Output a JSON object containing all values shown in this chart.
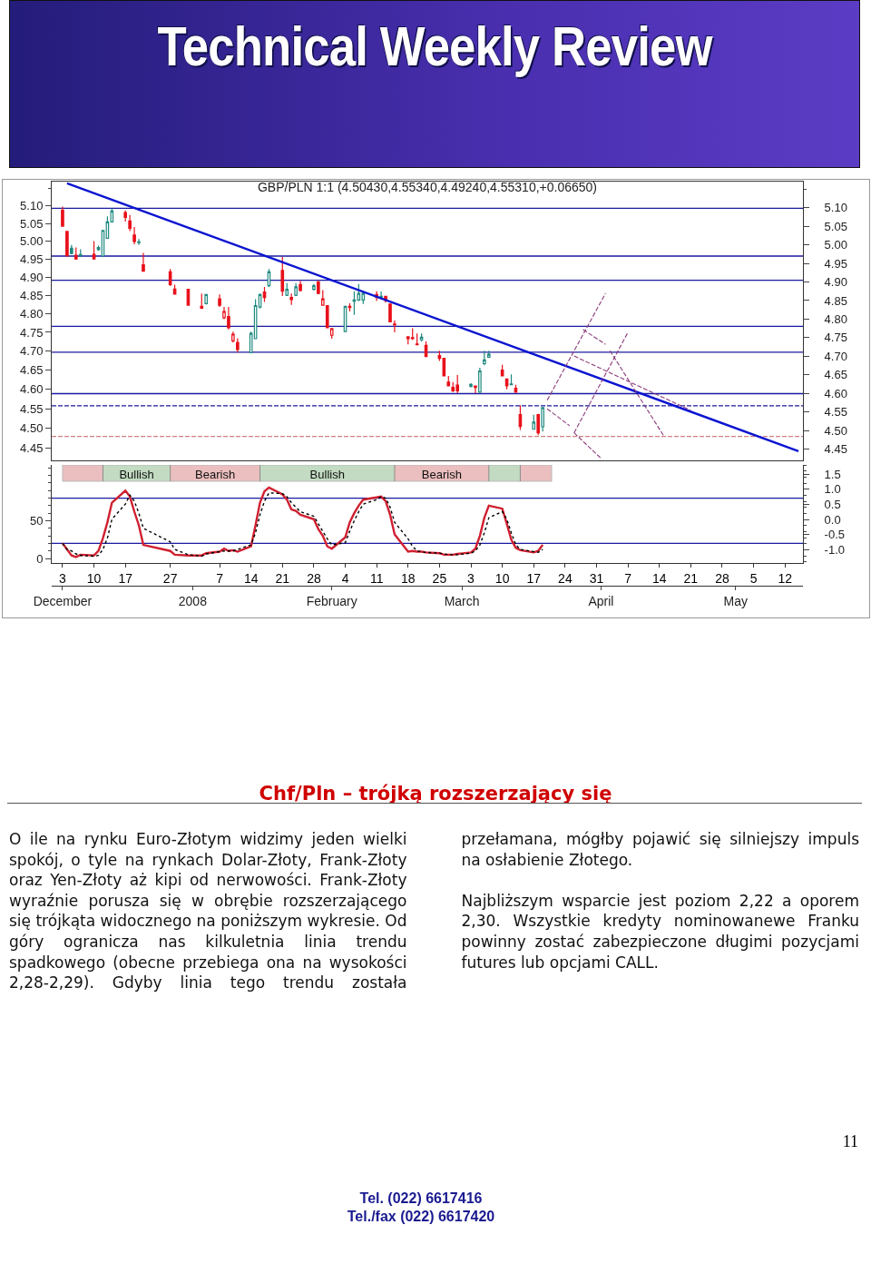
{
  "chart_data": [
    {
      "type": "other",
      "title": "Technical Weekly Review"
    },
    {
      "type": "candlestick",
      "title": "GBP/PLN 1:1 (4.50430,4.55340,4.49240,4.55310,+0.06650)",
      "x": [
        "2007-12-03",
        "2007-12-04",
        "2007-12-05",
        "2007-12-06",
        "2007-12-07",
        "2007-12-10",
        "2007-12-11",
        "2007-12-12",
        "2007-12-13",
        "2007-12-14",
        "2007-12-17",
        "2007-12-18",
        "2007-12-19",
        "2007-12-20",
        "2007-12-21",
        "2007-12-27",
        "2007-12-28",
        "2007-12-31",
        "2008-01-03",
        "2008-01-04",
        "2008-01-07",
        "2008-01-08",
        "2008-01-09",
        "2008-01-10",
        "2008-01-11",
        "2008-01-14",
        "2008-01-15",
        "2008-01-16",
        "2008-01-17",
        "2008-01-18",
        "2008-01-21",
        "2008-01-22",
        "2008-01-23",
        "2008-01-24",
        "2008-01-25",
        "2008-01-28",
        "2008-01-29",
        "2008-01-30",
        "2008-01-31",
        "2008-02-01",
        "2008-02-04",
        "2008-02-05",
        "2008-02-06",
        "2008-02-07",
        "2008-02-08",
        "2008-02-11",
        "2008-02-12",
        "2008-02-13",
        "2008-02-14",
        "2008-02-15",
        "2008-02-18",
        "2008-02-19",
        "2008-02-20",
        "2008-02-21",
        "2008-02-22",
        "2008-02-25",
        "2008-02-26",
        "2008-02-27",
        "2008-02-28",
        "2008-02-29",
        "2008-03-03",
        "2008-03-04",
        "2008-03-05",
        "2008-03-06",
        "2008-03-07",
        "2008-03-10",
        "2008-03-11",
        "2008-03-12",
        "2008-03-13",
        "2008-03-14",
        "2008-03-17",
        "2008-03-18",
        "2008-03-19"
      ],
      "ohlc": [
        [
          5.087,
          5.098,
          5.042,
          5.042
        ],
        [
          5.027,
          5.027,
          4.958,
          4.958
        ],
        [
          4.98,
          4.989,
          4.963,
          4.965
        ],
        [
          4.96,
          4.982,
          4.948,
          4.95
        ],
        [
          4.962,
          4.977,
          4.956,
          4.958
        ],
        [
          4.963,
          5.0,
          4.95,
          4.95
        ],
        [
          4.982,
          4.987,
          4.973,
          4.976
        ],
        [
          4.958,
          5.03,
          4.956,
          5.03
        ],
        [
          5.008,
          5.07,
          5.008,
          5.054
        ],
        [
          5.054,
          5.093,
          5.054,
          5.085
        ],
        [
          5.081,
          5.087,
          5.055,
          5.067
        ],
        [
          5.057,
          5.074,
          5.028,
          5.036
        ],
        [
          5.017,
          5.04,
          4.991,
          4.999
        ],
        [
          4.996,
          5.006,
          4.989,
          4.998
        ],
        [
          4.934,
          4.967,
          4.916,
          4.916
        ],
        [
          4.914,
          4.922,
          4.875,
          4.879
        ],
        [
          4.867,
          4.879,
          4.852,
          4.853
        ],
        [
          4.866,
          4.866,
          4.823,
          4.823
        ],
        [
          4.82,
          4.855,
          4.813,
          4.815
        ],
        [
          4.827,
          4.853,
          4.825,
          4.852
        ],
        [
          4.84,
          4.852,
          4.818,
          4.823
        ],
        [
          4.789,
          4.818,
          4.785,
          4.806
        ],
        [
          4.792,
          4.818,
          4.758,
          4.762
        ],
        [
          4.727,
          4.752,
          4.723,
          4.745
        ],
        [
          4.723,
          4.734,
          4.696,
          4.704
        ],
        [
          4.696,
          4.752,
          4.696,
          4.747
        ],
        [
          4.733,
          4.839,
          4.733,
          4.822
        ],
        [
          4.818,
          4.855,
          4.814,
          4.852
        ],
        [
          4.859,
          4.873,
          4.832,
          4.844
        ],
        [
          4.876,
          4.922,
          4.873,
          4.914
        ],
        [
          4.918,
          4.956,
          4.848,
          4.861
        ],
        [
          4.85,
          4.883,
          4.848,
          4.866
        ],
        [
          4.844,
          4.855,
          4.824,
          4.838
        ],
        [
          4.85,
          4.883,
          4.848,
          4.873
        ],
        [
          4.879,
          4.889,
          4.86,
          4.863
        ],
        [
          4.866,
          4.881,
          4.863,
          4.876
        ],
        [
          4.887,
          4.889,
          4.853,
          4.855
        ],
        [
          4.823,
          4.864,
          4.823,
          4.84
        ],
        [
          4.822,
          4.822,
          4.762,
          4.762
        ],
        [
          4.742,
          4.76,
          4.733,
          4.76
        ],
        [
          4.752,
          4.82,
          4.752,
          4.82
        ],
        [
          4.82,
          4.828,
          4.806,
          4.817
        ],
        [
          4.834,
          4.861,
          4.797,
          4.837
        ],
        [
          4.837,
          4.881,
          4.834,
          4.855
        ],
        [
          4.837,
          4.863,
          4.826,
          4.855
        ],
        [
          4.852,
          4.861,
          4.834,
          4.844
        ],
        [
          4.845,
          4.86,
          4.838,
          4.847
        ],
        [
          4.847,
          4.847,
          4.83,
          4.836
        ],
        [
          4.826,
          4.826,
          4.778,
          4.778
        ],
        [
          4.772,
          4.782,
          4.75,
          4.77
        ],
        [
          4.738,
          4.738,
          4.718,
          4.733
        ],
        [
          4.736,
          4.761,
          4.73,
          4.733
        ],
        [
          4.719,
          4.747,
          4.717,
          4.717
        ],
        [
          4.73,
          4.747,
          4.726,
          4.737
        ],
        [
          4.715,
          4.726,
          4.686,
          4.686
        ],
        [
          4.688,
          4.701,
          4.674,
          4.681
        ],
        [
          4.681,
          4.681,
          4.635,
          4.635
        ],
        [
          4.619,
          4.635,
          4.608,
          4.609
        ],
        [
          4.605,
          4.619,
          4.593,
          4.596
        ],
        [
          4.611,
          4.637,
          4.59,
          4.596
        ],
        [
          4.608,
          4.616,
          4.605,
          4.613
        ],
        [
          4.609,
          4.609,
          4.59,
          4.605
        ],
        [
          4.593,
          4.656,
          4.593,
          4.648
        ],
        [
          4.667,
          4.701,
          4.663,
          4.677
        ],
        [
          4.684,
          4.701,
          4.684,
          4.692
        ],
        [
          4.65,
          4.664,
          4.635,
          4.635
        ],
        [
          4.627,
          4.627,
          4.6,
          4.609
        ],
        [
          4.612,
          4.639,
          4.612,
          4.614
        ],
        [
          4.603,
          4.612,
          4.593,
          4.593
        ],
        [
          4.535,
          4.559,
          4.496,
          4.505
        ],
        [
          4.498,
          4.535,
          4.498,
          4.516
        ],
        [
          4.535,
          4.537,
          4.483,
          4.489
        ],
        [
          4.5043,
          4.5534,
          4.4924,
          4.5531
        ]
      ],
      "colors": [
        "#e8101a",
        "#e8101a",
        "#1f8a80",
        "#e8101a",
        "#1f8a80",
        "#e8101a",
        "#1f8a80",
        "#1f8a80",
        "#1f8a80",
        "#1f8a80",
        "#e8101a",
        "#e8101a",
        "#e8101a",
        "#1f8a80",
        "#e8101a",
        "#e8101a",
        "#e8101a",
        "#e8101a",
        "#e8101a",
        "#1f8a80",
        "#e8101a",
        "#e8101a",
        "#e8101a",
        "#e8101a",
        "#e8101a",
        "#1f8a80",
        "#1f8a80",
        "#1f8a80",
        "#e8101a",
        "#1f8a80",
        "#e8101a",
        "#1f8a80",
        "#e8101a",
        "#1f8a80",
        "#e8101a",
        "#1f8a80",
        "#e8101a",
        "#e8101a",
        "#e8101a",
        "#e8101a",
        "#1f8a80",
        "#e8101a",
        "#1f8a80",
        "#1f8a80",
        "#1f8a80",
        "#e8101a",
        "#1f8a80",
        "#e8101a",
        "#e8101a",
        "#e8101a",
        "#e8101a",
        "#e8101a",
        "#e8101a",
        "#1f8a80",
        "#e8101a",
        "#e8101a",
        "#e8101a",
        "#e8101a",
        "#e8101a",
        "#e8101a",
        "#1f8a80",
        "#e8101a",
        "#1f8a80",
        "#1f8a80",
        "#1f8a80",
        "#e8101a",
        "#e8101a",
        "#1f8a80",
        "#e8101a",
        "#e8101a",
        "#1f8a80",
        "#e8101a",
        "#1f8a80"
      ],
      "series": [
        {
          "type": "line",
          "color": "#0a14d0",
          "x": [
            "2007-12-04",
            "2008-05-15"
          ],
          "values": [
            5.165,
            4.443
          ]
        },
        {
          "type": "line",
          "color": "#8b3a7a",
          "line_style": "dashed",
          "x": [
            "2008-03-20",
            "2008-04-02"
          ],
          "values": [
            4.572,
            4.855
          ]
        },
        {
          "type": "line",
          "color": "#8b3a7a",
          "line_style": "dashed",
          "x": [
            "2008-03-26",
            "2008-04-07"
          ],
          "values": [
            4.489,
            4.75
          ]
        },
        {
          "type": "line",
          "color": "#8b3a7a",
          "line_style": "dashed",
          "x": [
            "2008-03-26",
            "2008-04-21"
          ],
          "values": [
            4.687,
            4.546
          ]
        },
        {
          "type": "line",
          "color": "#8b3a7a",
          "line_style": "dashed",
          "x": [
            "2008-04-03",
            "2008-04-15"
          ],
          "values": [
            4.701,
            4.481
          ]
        },
        {
          "type": "line",
          "color": "#8b3a7a",
          "line_style": "dashed",
          "x": [
            "2008-03-20",
            "2008-03-25"
          ],
          "values": [
            4.55,
            4.507
          ]
        },
        {
          "type": "line",
          "color": "#8b3a7a",
          "line_style": "dashed",
          "x": [
            "2008-03-28",
            "2008-04-02"
          ],
          "values": [
            4.757,
            4.718
          ]
        },
        {
          "type": "line",
          "color": "#8b3a7a",
          "line_style": "dashed",
          "x": [
            "2008-03-26",
            "2008-04-01"
          ],
          "values": [
            4.489,
            4.425
          ]
        }
      ],
      "ref_lines": [
        {
          "axis": "y",
          "value": 5.093,
          "color": "#1a1aa0"
        },
        {
          "axis": "y",
          "value": 4.958,
          "color": "#1a1aa0"
        },
        {
          "axis": "y",
          "value": 4.891,
          "color": "#1a1aa0"
        },
        {
          "axis": "y",
          "value": 4.766,
          "color": "#1a1aa0"
        },
        {
          "axis": "y",
          "value": 4.697,
          "color": "#1a1aa0"
        },
        {
          "axis": "y",
          "value": 4.589,
          "color": "#1a1aa0"
        },
        {
          "axis": "y",
          "value": 4.558,
          "color": "#1a1aa0",
          "line_style": "dashed"
        },
        {
          "axis": "y",
          "value": 4.48,
          "color": "#d08080",
          "line_style": "dashed"
        }
      ],
      "log": "y",
      "xlim": [
        "2007-11-30T14:00",
        "2008-05-16"
      ],
      "ylim": [
        4.42,
        5.17
      ],
      "yticks": [
        4.45,
        {
          "value": 4.5,
          "label": "4.50"
        },
        4.55,
        {
          "value": 4.6,
          "label": "4.60"
        },
        4.65,
        {
          "value": 4.7,
          "label": "4.70"
        },
        4.75,
        {
          "value": 4.8,
          "label": "4.80"
        },
        4.85,
        {
          "value": 4.9,
          "label": "4.90"
        },
        4.95,
        {
          "value": 5.0,
          "label": "5.00"
        },
        5.05,
        {
          "value": 5.1,
          "label": "5.10"
        }
      ],
      "y2lim": [
        4.42,
        5.17
      ],
      "y2ticks": [
        4.45,
        {
          "value": 4.5,
          "label": "4.50"
        },
        4.55,
        {
          "value": 4.6,
          "label": "4.60"
        },
        4.65,
        {
          "value": 4.7,
          "label": "4.70"
        },
        4.75,
        {
          "value": 4.8,
          "label": "4.80"
        },
        4.85,
        {
          "value": 4.9,
          "label": "4.90"
        },
        4.95,
        {
          "value": 5.0,
          "label": "5.00"
        },
        5.05,
        {
          "value": 5.1,
          "label": "5.10"
        }
      ],
      "tick_labels": "y",
      "grid": false
    },
    {
      "type": "line",
      "x": [
        "2007-12-03",
        "2007-12-04",
        "2007-12-05",
        "2007-12-06",
        "2007-12-07",
        "2007-12-10",
        "2007-12-11",
        "2007-12-12",
        "2007-12-13",
        "2007-12-14",
        "2007-12-17",
        "2007-12-18",
        "2007-12-19",
        "2007-12-20",
        "2007-12-21",
        "2007-12-27",
        "2007-12-28",
        "2007-12-31",
        "2008-01-03",
        "2008-01-04",
        "2008-01-07",
        "2008-01-08",
        "2008-01-09",
        "2008-01-10",
        "2008-01-11",
        "2008-01-14",
        "2008-01-15",
        "2008-01-16",
        "2008-01-17",
        "2008-01-18",
        "2008-01-21",
        "2008-01-22",
        "2008-01-23",
        "2008-01-24",
        "2008-01-25",
        "2008-01-28",
        "2008-01-29",
        "2008-01-30",
        "2008-01-31",
        "2008-02-01",
        "2008-02-04",
        "2008-02-05",
        "2008-02-06",
        "2008-02-07",
        "2008-02-08",
        "2008-02-11",
        "2008-02-12",
        "2008-02-13",
        "2008-02-14",
        "2008-02-15",
        "2008-02-18",
        "2008-02-19",
        "2008-02-20",
        "2008-02-21",
        "2008-02-22",
        "2008-02-25",
        "2008-02-26",
        "2008-02-27",
        "2008-02-28",
        "2008-02-29",
        "2008-03-03",
        "2008-03-04",
        "2008-03-05",
        "2008-03-06",
        "2008-03-07",
        "2008-03-10",
        "2008-03-11",
        "2008-03-12",
        "2008-03-13",
        "2008-03-14",
        "2008-03-17",
        "2008-03-18",
        "2008-03-19"
      ],
      "series": [
        {
          "color": "#d02030",
          "values": [
            20,
            12,
            4,
            2,
            5,
            4,
            10,
            27,
            48,
            74,
            90,
            82,
            62,
            44,
            18,
            10,
            5,
            4,
            4,
            7,
            9,
            13,
            10,
            11,
            9,
            16,
            44,
            74,
            89,
            94,
            85,
            78,
            65,
            63,
            58,
            52,
            39,
            30,
            16,
            13,
            28,
            48,
            60,
            70,
            78,
            81,
            82,
            76,
            58,
            32,
            9,
            10,
            9,
            9,
            8,
            7,
            5,
            5,
            5,
            6,
            8,
            13,
            30,
            54,
            70,
            66,
            46,
            25,
            14,
            11,
            8,
            10,
            18
          ]
        },
        {
          "color": "#000000",
          "line_style": "dotted",
          "values": [
            20,
            12,
            10,
            6,
            4,
            3,
            4,
            12,
            27,
            52,
            72,
            84,
            76,
            60,
            40,
            22,
            12,
            5,
            3,
            6,
            9,
            10,
            10,
            10,
            12,
            18,
            34,
            58,
            76,
            87,
            86,
            82,
            74,
            68,
            62,
            56,
            46,
            36,
            26,
            18,
            21,
            36,
            50,
            62,
            72,
            78,
            82,
            80,
            68,
            48,
            26,
            16,
            10,
            9,
            8,
            7,
            6,
            5,
            5,
            5,
            7,
            10,
            18,
            34,
            54,
            62,
            52,
            34,
            18,
            12,
            9,
            8,
            12
          ]
        }
      ],
      "ref_lines": [
        {
          "axis": "y",
          "value": 80,
          "color": "#1a1aa0"
        },
        {
          "axis": "y",
          "value": 20,
          "color": "#1a1aa0"
        }
      ],
      "bands": [
        {
          "axis": "x",
          "from": "2007-12-03",
          "to": "2007-12-12",
          "color": "#c03030"
        },
        {
          "axis": "x",
          "from": "2007-12-12",
          "to": "2007-12-27",
          "label": "Bullish",
          "color": "#3a8a3a"
        },
        {
          "axis": "x",
          "from": "2007-12-27",
          "to": "2008-01-16",
          "label": "Bearish",
          "color": "#c03030"
        },
        {
          "axis": "x",
          "from": "2008-01-16",
          "to": "2008-02-15",
          "label": "Bullish",
          "color": "#3a8a3a"
        },
        {
          "axis": "x",
          "from": "2008-02-15",
          "to": "2008-03-07",
          "label": "Bearish",
          "color": "#c03030"
        },
        {
          "axis": "x",
          "from": "2008-03-07",
          "to": "2008-03-14",
          "color": "#3a8a3a"
        },
        {
          "axis": "x",
          "from": "2008-03-14",
          "to": "2008-03-21",
          "color": "#c03030"
        }
      ],
      "xlim": [
        "2007-11-30T14:00",
        "2008-05-16"
      ],
      "xticks": [
        {
          "value": "2007-12-03",
          "label": "3"
        },
        {
          "value": "2007-12-10",
          "label": "10"
        },
        {
          "value": "2007-12-17",
          "label": "17"
        },
        {
          "value": "2007-12-27",
          "label": "27"
        },
        {
          "value": "2008-01-07",
          "label": "7"
        },
        {
          "value": "2008-01-14",
          "label": "14"
        },
        {
          "value": "2008-01-21",
          "label": "21"
        },
        {
          "value": "2008-01-28",
          "label": "28"
        },
        {
          "value": "2008-02-04",
          "label": "4"
        },
        {
          "value": "2008-02-11",
          "label": "11"
        },
        {
          "value": "2008-02-18",
          "label": "18"
        },
        {
          "value": "2008-02-25",
          "label": "25"
        },
        {
          "value": "2008-03-03",
          "label": "3"
        },
        {
          "value": "2008-03-10",
          "label": "10"
        },
        {
          "value": "2008-03-17",
          "label": "17"
        },
        {
          "value": "2008-03-24",
          "label": "24"
        },
        {
          "value": "2008-03-31",
          "label": "31"
        },
        {
          "value": "2008-04-07",
          "label": "7"
        },
        {
          "value": "2008-04-14",
          "label": "14"
        },
        {
          "value": "2008-04-21",
          "label": "21"
        },
        {
          "value": "2008-04-28",
          "label": "28"
        },
        {
          "value": "2008-05-05",
          "label": "5"
        },
        {
          "value": "2008-05-12",
          "label": "12"
        }
      ],
      "x2lim": [
        "2007-11-30T14:00",
        "2008-05-16"
      ],
      "x2ticks": [
        {
          "value": "2007-12-03",
          "label": "December"
        },
        {
          "value": "2008-01-01",
          "label": "2008"
        },
        {
          "value": "2008-02-01",
          "label": "February"
        },
        {
          "value": "2008-03-01",
          "label": "March"
        },
        {
          "value": "2008-04-01",
          "label": "April"
        },
        {
          "value": "2008-05-01",
          "label": "May"
        }
      ],
      "ylim": [
        -6,
        124
      ],
      "yticks": [
        0,
        50
      ],
      "y2lim": [
        -1.44,
        1.8
      ],
      "y2ticks": [
        {
          "value": 1.5,
          "label": "1.5"
        },
        {
          "value": 1,
          "label": "1.0"
        },
        {
          "value": 0.5,
          "label": "0.5"
        },
        {
          "value": 0,
          "label": "0.0"
        },
        {
          "value": -0.5,
          "label": "-0.5"
        },
        {
          "value": -1,
          "label": "-1.0"
        }
      ],
      "grid": false
    },
    {
      "type": "other",
      "title": "Chf/Pln – trójką rozszerzający się",
      "annotations": [
        "O ile na rynku Euro-Złotym widzimy jeden wielki spokój, o tyle na rynkach Dolar-Złoty, Frank-Złoty oraz Yen-Złoty aż kipi od nerwowości. Frank-Złoty wyraźnie porusza się w obrębie rozszerzającego się trójkąta widocznego na poniższym wykresie. Od góry ogranicza nas kilkuletnia linia trendu spadkowego (obecne przebiega ona na wysokości 2,28-2,29). Gdyby linia tego trendu została przełamana, mógłby pojawić się silniejszy impuls na osłabienie Złotego.",
        "Najbliższym wsparcie jest poziom 2,22 a oporem 2,30. Wszystkie kredyty nominowanewe Franku powinny zostać zabezpieczone długimi pozycjami futures lub opcjami CALL.",
        "Tel. (022) 6617416",
        "Tel./fax (022) 6617420",
        "11"
      ]
    }
  ]
}
